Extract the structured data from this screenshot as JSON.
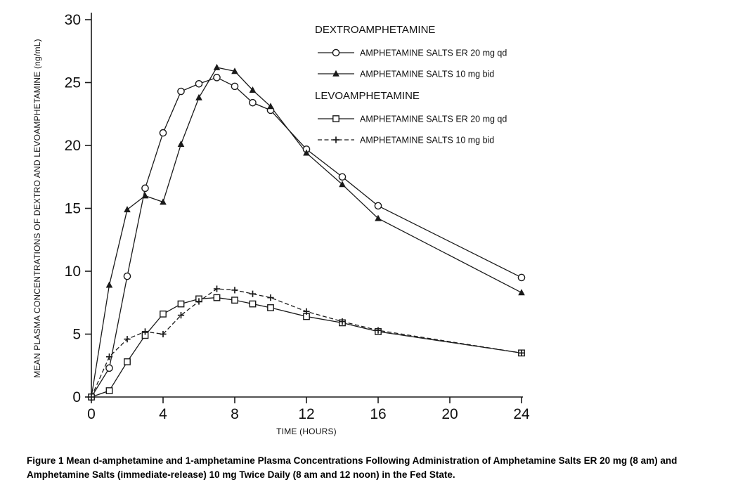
{
  "page": {
    "caption": "Figure 1 Mean d-amphetamine and 1-amphetamine Plasma Concentrations Following Administration of Amphetamine Salts ER 20 mg (8 am) and Amphetamine Salts (immediate-release) 10 mg Twice Daily (8 am and 12 noon) in the Fed State."
  },
  "chart_data": {
    "type": "line",
    "title": "",
    "xlabel": "TIME (HOURS)",
    "ylabel": "MEAN PLASMA CONCENTRATIONS OF DEXTRO AND LEVOAMPHETAMINE (ng/mL)",
    "xlim": [
      0,
      24
    ],
    "ylim": [
      0,
      30
    ],
    "xticks": [
      0,
      4,
      8,
      12,
      16,
      20,
      24
    ],
    "yticks": [
      0,
      5,
      10,
      15,
      20,
      25,
      30
    ],
    "grid": false,
    "legend_position": "top-right-inside",
    "colors": {
      "line": "#1a1a1a",
      "background": "#ffffff"
    },
    "legend_groups": [
      {
        "title": "DEXTROAMPHETAMINE",
        "entries": [
          {
            "label": "AMPHETAMINE SALTS ER 20 mg qd",
            "marker": "open-circle",
            "line": "solid"
          },
          {
            "label": "AMPHETAMINE SALTS 10 mg bid",
            "marker": "filled-triangle",
            "line": "solid"
          }
        ]
      },
      {
        "title": "LEVOAMPHETAMINE",
        "entries": [
          {
            "label": "AMPHETAMINE SALTS ER 20 mg qd",
            "marker": "open-square",
            "line": "solid"
          },
          {
            "label": "AMPHETAMINE SALTS 10 mg bid",
            "marker": "plus",
            "line": "dashed"
          }
        ]
      }
    ],
    "series": [
      {
        "name": "Dextroamphetamine - Amphetamine Salts ER 20 mg qd",
        "marker": "open-circle",
        "line": "solid",
        "x": [
          0,
          1,
          2,
          3,
          4,
          5,
          6,
          7,
          8,
          9,
          10,
          12,
          14,
          16,
          24
        ],
        "y": [
          0,
          2.3,
          9.6,
          16.6,
          21.0,
          24.3,
          24.9,
          25.4,
          24.7,
          23.4,
          22.8,
          19.7,
          17.5,
          15.2,
          9.5
        ]
      },
      {
        "name": "Dextroamphetamine - Amphetamine Salts 10 mg bid",
        "marker": "filled-triangle",
        "line": "solid",
        "x": [
          0,
          1,
          2,
          3,
          4,
          5,
          6,
          7,
          8,
          9,
          10,
          12,
          14,
          16,
          24
        ],
        "y": [
          0,
          8.9,
          14.9,
          16.0,
          15.5,
          20.1,
          23.8,
          26.2,
          25.9,
          24.4,
          23.1,
          19.4,
          16.9,
          14.2,
          8.3
        ]
      },
      {
        "name": "Levoamphetamine - Amphetamine Salts ER 20 mg qd",
        "marker": "open-square",
        "line": "solid",
        "x": [
          0,
          1,
          2,
          3,
          4,
          5,
          6,
          7,
          8,
          9,
          10,
          12,
          14,
          16,
          24
        ],
        "y": [
          0,
          0.5,
          2.8,
          4.9,
          6.6,
          7.4,
          7.8,
          7.9,
          7.7,
          7.4,
          7.1,
          6.4,
          5.9,
          5.2,
          3.5
        ]
      },
      {
        "name": "Levoamphetamine - Amphetamine Salts 10 mg bid",
        "marker": "plus",
        "line": "dashed",
        "x": [
          0,
          1,
          2,
          3,
          4,
          5,
          6,
          7,
          8,
          9,
          10,
          12,
          14,
          16,
          24
        ],
        "y": [
          0,
          3.2,
          4.6,
          5.2,
          5.0,
          6.5,
          7.6,
          8.6,
          8.5,
          8.2,
          7.9,
          6.8,
          6.0,
          5.3,
          3.5
        ]
      }
    ]
  }
}
